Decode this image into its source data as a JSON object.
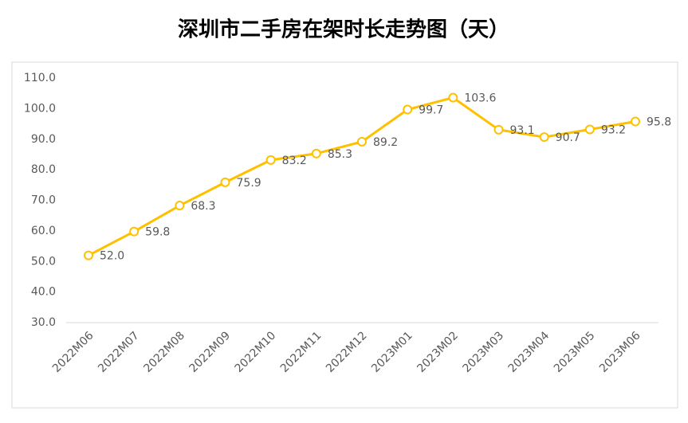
{
  "chart_data": {
    "type": "line",
    "title": "深圳市二手房在架时长走势图（天）",
    "categories": [
      "2022M06",
      "2022M07",
      "2022M08",
      "2022M09",
      "2022M10",
      "2022M11",
      "2022M12",
      "2023M01",
      "2023M02",
      "2023M03",
      "2023M04",
      "2023M05",
      "2023M06"
    ],
    "series": [
      {
        "name": "在架时长",
        "color": "#FFC000",
        "values": [
          52.0,
          59.8,
          68.3,
          75.9,
          83.2,
          85.3,
          89.2,
          99.7,
          103.6,
          93.1,
          90.7,
          93.2,
          95.8
        ],
        "value_labels": [
          "52.0",
          "59.8",
          "68.3",
          "75.9",
          "83.2",
          "85.3",
          "89.2",
          "99.7",
          "103.6",
          "93.1",
          "90.7",
          "93.2",
          "95.8"
        ]
      }
    ],
    "ylim": [
      30,
      110
    ],
    "yticks": [
      {
        "value": 30,
        "label": "30.0"
      },
      {
        "value": 40,
        "label": "40.0"
      },
      {
        "value": 50,
        "label": "50.0"
      },
      {
        "value": 60,
        "label": "60.0"
      },
      {
        "value": 70,
        "label": "70.0"
      },
      {
        "value": 80,
        "label": "80.0"
      },
      {
        "value": 90,
        "label": "90.0"
      },
      {
        "value": 100,
        "label": "100.0"
      },
      {
        "value": 110,
        "label": "110.0"
      }
    ],
    "grid": false
  }
}
